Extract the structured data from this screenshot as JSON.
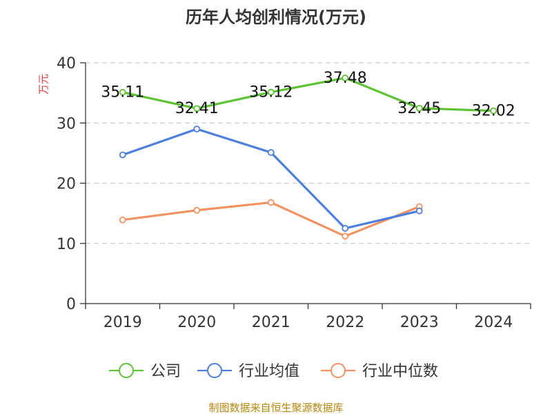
{
  "chart_data": {
    "type": "line",
    "title": "历年人均创利情况(万元)",
    "ylabel": "万元",
    "xlabel": "",
    "categories": [
      "2019",
      "2020",
      "2021",
      "2022",
      "2023",
      "2024"
    ],
    "ylim": [
      0,
      40
    ],
    "yticks": [
      0,
      10,
      20,
      30,
      40
    ],
    "grid": true,
    "legend_position": "bottom",
    "series": [
      {
        "name": "公司",
        "color": "#5cc430",
        "values": [
          35.11,
          32.41,
          35.12,
          37.48,
          32.45,
          32.02
        ],
        "labels": [
          "35.11",
          "32.41",
          "35.12",
          "37.48",
          "32.45",
          "32.02"
        ]
      },
      {
        "name": "行业均值",
        "color": "#4a7fe0",
        "values": [
          24.7,
          29.0,
          25.1,
          12.5,
          15.4,
          null
        ]
      },
      {
        "name": "行业中位数",
        "color": "#f4915f",
        "values": [
          13.9,
          15.5,
          16.8,
          11.2,
          16.1,
          null
        ]
      }
    ]
  },
  "footer": {
    "source": "制图数据来自恒生聚源数据库"
  }
}
